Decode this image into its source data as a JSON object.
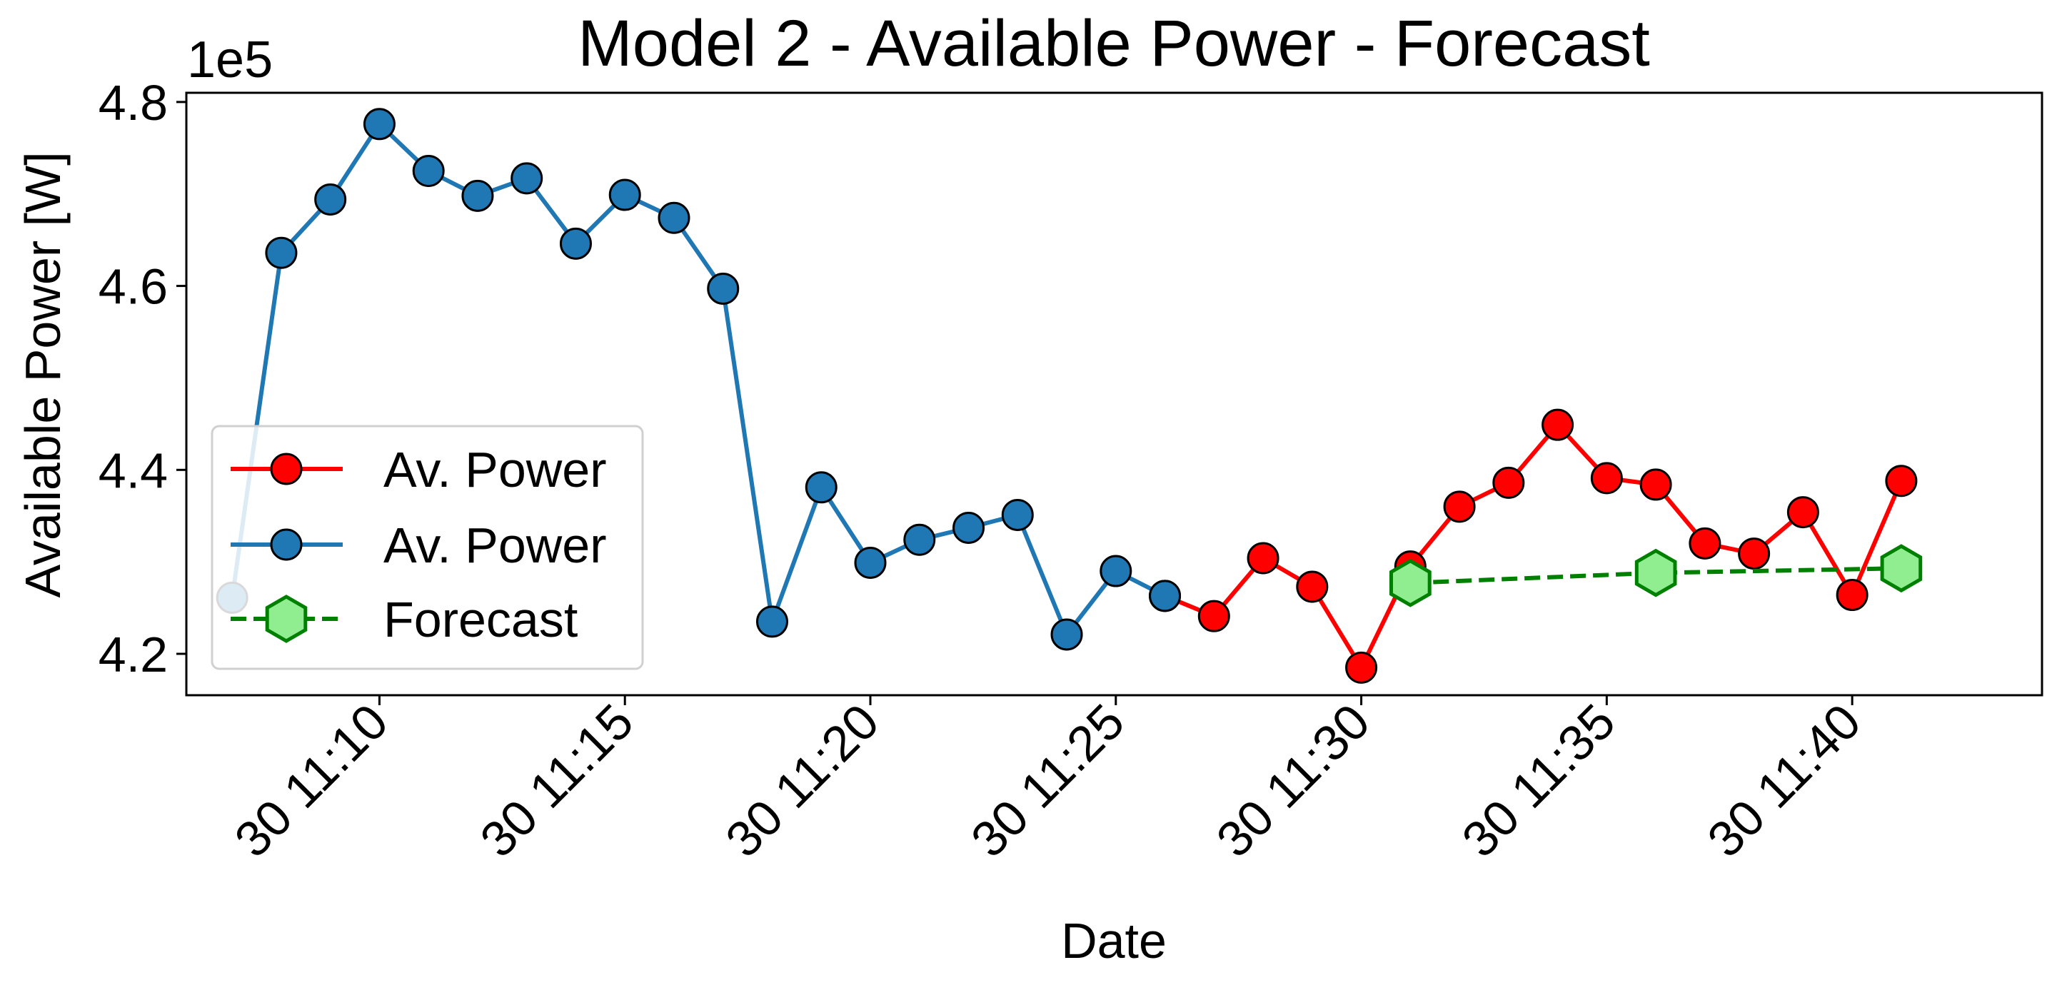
{
  "chart_data": {
    "type": "line",
    "title": "Model 2 - Available Power - Forecast",
    "xlabel": "Date",
    "ylabel": "Available Power [W]",
    "y_multiplier_label": "1e5",
    "y_multiplier": 100000,
    "x_unit": "time of day (day 30)",
    "xlim": [
      "30 11:06:04",
      "30 11:43:52"
    ],
    "ylim": [
      4.155,
      4.81
    ],
    "x_ticks": [
      "30 11:10",
      "30 11:15",
      "30 11:20",
      "30 11:25",
      "30 11:30",
      "30 11:35",
      "30 11:40"
    ],
    "y_ticks": [
      4.2,
      4.4,
      4.6,
      4.8
    ],
    "grid": false,
    "legend_position": "center-left",
    "series": [
      {
        "name": "Av. Power",
        "color": "#ff0000",
        "marker": "circle",
        "line_style": "solid",
        "x": [
          "30 11:26",
          "30 11:27",
          "30 11:28",
          "30 11:29",
          "30 11:30",
          "30 11:31",
          "30 11:32",
          "30 11:33",
          "30 11:34",
          "30 11:35",
          "30 11:36",
          "30 11:37",
          "30 11:38",
          "30 11:39",
          "30 11:40",
          "30 11:41"
        ],
        "y": [
          4.263,
          4.241,
          4.304,
          4.273,
          4.185,
          4.295,
          4.36,
          4.386,
          4.449,
          4.391,
          4.384,
          4.32,
          4.309,
          4.354,
          4.264,
          4.388
        ]
      },
      {
        "name": "Av. Power",
        "color": "#1f77b4",
        "marker": "circle",
        "line_style": "solid",
        "x": [
          "30 11:07",
          "30 11:08",
          "30 11:09",
          "30 11:10",
          "30 11:11",
          "30 11:12",
          "30 11:13",
          "30 11:14",
          "30 11:15",
          "30 11:16",
          "30 11:17",
          "30 11:18",
          "30 11:19",
          "30 11:20",
          "30 11:21",
          "30 11:22",
          "30 11:23",
          "30 11:24",
          "30 11:25",
          "30 11:26"
        ],
        "y": [
          4.261,
          4.636,
          4.694,
          4.776,
          4.725,
          4.698,
          4.717,
          4.646,
          4.699,
          4.674,
          4.597,
          4.235,
          4.381,
          4.299,
          4.324,
          4.337,
          4.351,
          4.221,
          4.29,
          4.263
        ]
      },
      {
        "name": "Forecast",
        "color": "#008000",
        "marker_fill": "#90ee90",
        "marker": "hexagon",
        "line_style": "dashed",
        "x": [
          "30 11:31",
          "30 11:36",
          "30 11:41"
        ],
        "y": [
          4.277,
          4.288,
          4.293
        ]
      }
    ]
  }
}
